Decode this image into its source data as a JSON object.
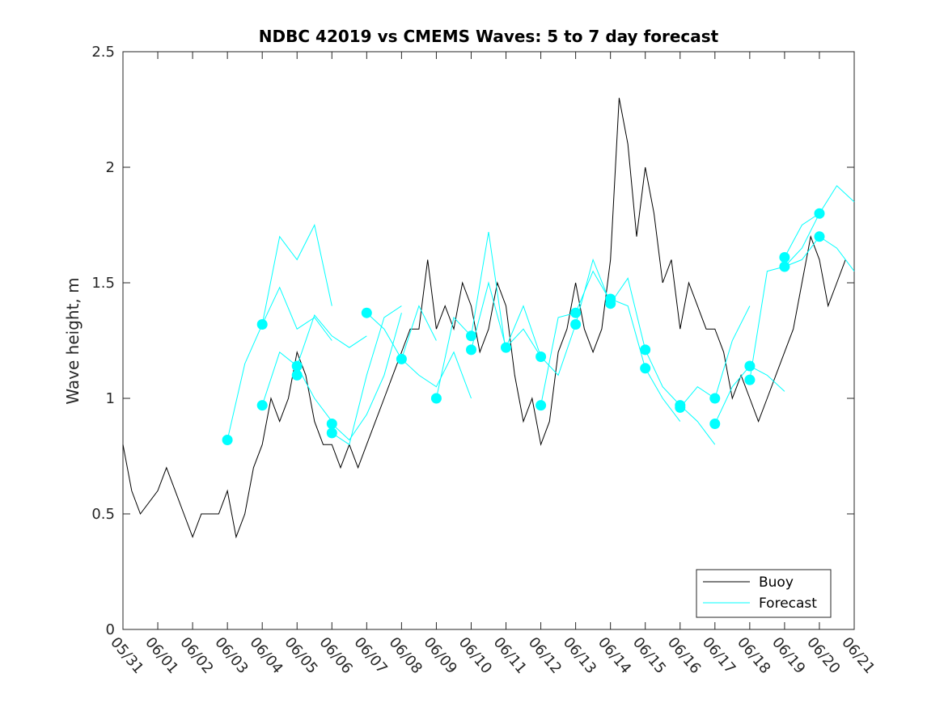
{
  "chart_data": {
    "type": "line",
    "title": "NDBC 42019 vs CMEMS Waves: 5 to 7 day forecast",
    "xlabel": "",
    "ylabel": "Wave height, m",
    "x_unit": "days",
    "x_tick_labels": [
      "05/31",
      "06/01",
      "06/02",
      "06/03",
      "06/04",
      "06/05",
      "06/06",
      "06/07",
      "06/08",
      "06/09",
      "06/10",
      "06/11",
      "06/12",
      "06/13",
      "06/14",
      "06/15",
      "06/16",
      "06/17",
      "06/18",
      "06/19",
      "06/20",
      "06/21"
    ],
    "xlim": [
      "05/31",
      "06/21"
    ],
    "ylim": [
      0,
      2.5
    ],
    "y_ticks": [
      0,
      0.5,
      1,
      1.5,
      2,
      2.5
    ],
    "grid": false,
    "legend_position": "bottom-right",
    "colors": {
      "buoy": "#000000",
      "forecast": "#00ffff"
    },
    "legend": [
      {
        "label": "Buoy",
        "color": "#000000"
      },
      {
        "label": "Forecast",
        "color": "#00ffff"
      }
    ],
    "buoy": {
      "name": "Buoy",
      "x": [
        "05/31",
        "05/31 06:00",
        "05/31 12:00",
        "06/01",
        "06/01 06:00",
        "06/01 12:00",
        "06/01 18:00",
        "06/02",
        "06/02 06:00",
        "06/02 12:00",
        "06/02 18:00",
        "06/03",
        "06/03 06:00",
        "06/03 12:00",
        "06/03 18:00",
        "06/04",
        "06/04 06:00",
        "06/04 12:00",
        "06/04 18:00",
        "06/05",
        "06/05 06:00",
        "06/05 12:00",
        "06/05 18:00",
        "06/06",
        "06/06 06:00",
        "06/06 12:00",
        "06/06 18:00",
        "06/07",
        "06/07 06:00",
        "06/07 12:00",
        "06/07 18:00",
        "06/08",
        "06/08 06:00",
        "06/08 12:00",
        "06/08 18:00",
        "06/09",
        "06/09 06:00",
        "06/09 12:00",
        "06/09 18:00",
        "06/10",
        "06/10 06:00",
        "06/10 12:00",
        "06/10 18:00",
        "06/11",
        "06/11 06:00",
        "06/11 12:00",
        "06/11 18:00",
        "06/12",
        "06/12 06:00",
        "06/12 12:00",
        "06/12 18:00",
        "06/13",
        "06/13 06:00",
        "06/13 12:00",
        "06/13 18:00",
        "06/14",
        "06/14 06:00",
        "06/14 12:00",
        "06/14 18:00",
        "06/15",
        "06/15 06:00",
        "06/15 12:00",
        "06/15 18:00",
        "06/16",
        "06/16 06:00",
        "06/16 12:00",
        "06/16 18:00",
        "06/17",
        "06/17 06:00",
        "06/17 12:00",
        "06/17 18:00",
        "06/18",
        "06/18 06:00",
        "06/18 12:00",
        "06/18 18:00",
        "06/19",
        "06/19 06:00",
        "06/19 12:00",
        "06/19 18:00",
        "06/20",
        "06/20 06:00",
        "06/20 12:00",
        "06/20 18:00"
      ],
      "y": [
        0.8,
        0.6,
        0.5,
        0.6,
        0.7,
        0.6,
        0.5,
        0.4,
        0.5,
        0.5,
        0.5,
        0.6,
        0.4,
        0.5,
        0.7,
        0.8,
        1.0,
        0.9,
        1.0,
        1.2,
        1.1,
        0.9,
        0.8,
        0.8,
        0.7,
        0.8,
        0.7,
        0.8,
        0.9,
        1.0,
        1.1,
        1.2,
        1.3,
        1.3,
        1.6,
        1.3,
        1.4,
        1.3,
        1.5,
        1.4,
        1.2,
        1.3,
        1.5,
        1.4,
        1.1,
        0.9,
        1.0,
        0.8,
        0.9,
        1.2,
        1.3,
        1.5,
        1.3,
        1.2,
        1.3,
        1.6,
        2.3,
        2.1,
        1.7,
        2.0,
        1.8,
        1.5,
        1.6,
        1.3,
        1.5,
        1.4,
        1.3,
        1.3,
        1.2,
        1.0,
        1.1,
        1.0,
        0.9,
        1.0,
        1.1,
        1.2,
        1.3,
        1.5,
        1.7,
        1.6,
        1.4,
        1.5,
        1.6
      ]
    },
    "forecast": {
      "name": "Forecast",
      "runs": [
        {
          "x": [
            "06/03",
            "06/03 12:00",
            "06/04",
            "06/04 12:00",
            "06/05",
            "06/05 12:00",
            "06/06"
          ],
          "y": [
            0.82,
            1.15,
            1.32,
            1.7,
            1.6,
            1.75,
            1.4
          ]
        },
        {
          "x": [
            "06/04",
            "06/04 12:00",
            "06/05",
            "06/05 12:00",
            "06/06"
          ],
          "y": [
            1.32,
            1.48,
            1.3,
            1.35,
            1.25
          ]
        },
        {
          "x": [
            "06/04",
            "06/04 12:00",
            "06/05",
            "06/05 12:00",
            "06/06"
          ],
          "y": [
            0.97,
            1.2,
            1.14,
            1.0,
            0.9
          ]
        },
        {
          "x": [
            "06/05",
            "06/05 12:00",
            "06/06",
            "06/06 12:00",
            "06/07"
          ],
          "y": [
            1.14,
            1.36,
            1.27,
            1.22,
            1.27
          ]
        },
        {
          "x": [
            "06/06",
            "06/06 12:00",
            "06/07",
            "06/07 12:00",
            "06/08"
          ],
          "y": [
            0.89,
            0.82,
            0.93,
            1.1,
            1.37
          ]
        },
        {
          "x": [
            "06/06",
            "06/06 12:00",
            "06/07",
            "06/07 12:00",
            "06/08"
          ],
          "y": [
            0.85,
            0.8,
            1.1,
            1.35,
            1.4
          ]
        },
        {
          "x": [
            "06/07",
            "06/07 12:00",
            "06/08",
            "06/08 12:00",
            "06/09"
          ],
          "y": [
            1.37,
            1.3,
            1.17,
            1.4,
            1.25
          ]
        },
        {
          "x": [
            "06/08",
            "06/08 12:00",
            "06/09",
            "06/09 12:00",
            "06/10"
          ],
          "y": [
            1.17,
            1.1,
            1.05,
            1.2,
            1.0
          ]
        },
        {
          "x": [
            "06/09",
            "06/09 12:00",
            "06/10",
            "06/10 12:00",
            "06/11"
          ],
          "y": [
            1.0,
            1.35,
            1.27,
            1.72,
            1.2
          ]
        },
        {
          "x": [
            "06/10",
            "06/10 12:00",
            "06/11",
            "06/11 12:00",
            "06/12"
          ],
          "y": [
            1.21,
            1.5,
            1.22,
            1.3,
            1.18
          ]
        },
        {
          "x": [
            "06/11",
            "06/11 12:00",
            "06/12",
            "06/12 12:00",
            "06/13"
          ],
          "y": [
            1.22,
            1.4,
            1.18,
            1.1,
            1.32
          ]
        },
        {
          "x": [
            "06/12",
            "06/12 12:00",
            "06/13",
            "06/13 12:00",
            "06/14"
          ],
          "y": [
            0.97,
            1.35,
            1.37,
            1.55,
            1.42
          ]
        },
        {
          "x": [
            "06/13",
            "06/13 12:00",
            "06/14",
            "06/14 12:00",
            "06/15"
          ],
          "y": [
            1.32,
            1.6,
            1.41,
            1.52,
            1.21
          ]
        },
        {
          "x": [
            "06/14",
            "06/14 12:00",
            "06/15",
            "06/15 12:00",
            "06/16"
          ],
          "y": [
            1.43,
            1.4,
            1.13,
            1.0,
            0.9
          ]
        },
        {
          "x": [
            "06/15",
            "06/15 12:00",
            "06/16",
            "06/16 12:00",
            "06/17"
          ],
          "y": [
            1.21,
            1.05,
            0.97,
            0.9,
            0.8
          ]
        },
        {
          "x": [
            "06/16",
            "06/16 12:00",
            "06/17",
            "06/17 12:00",
            "06/18"
          ],
          "y": [
            0.96,
            1.05,
            1.0,
            1.25,
            1.4
          ]
        },
        {
          "x": [
            "06/17",
            "06/17 12:00",
            "06/18",
            "06/18 12:00",
            "06/19"
          ],
          "y": [
            0.89,
            1.05,
            1.14,
            1.1,
            1.03
          ]
        },
        {
          "x": [
            "06/18",
            "06/18 12:00",
            "06/19",
            "06/19 12:00",
            "06/20"
          ],
          "y": [
            1.08,
            1.55,
            1.57,
            1.65,
            1.8
          ]
        },
        {
          "x": [
            "06/19",
            "06/19 12:00",
            "06/20",
            "06/20 12:00",
            "06/21"
          ],
          "y": [
            1.61,
            1.75,
            1.8,
            1.92,
            1.85
          ]
        },
        {
          "x": [
            "06/19",
            "06/19 12:00",
            "06/20",
            "06/20 12:00",
            "06/21"
          ],
          "y": [
            1.57,
            1.6,
            1.7,
            1.65,
            1.55
          ]
        }
      ],
      "markers": {
        "x": [
          "06/03",
          "06/04",
          "06/04",
          "06/05",
          "06/05",
          "06/06",
          "06/06",
          "06/07",
          "06/08",
          "06/09",
          "06/10",
          "06/10",
          "06/11",
          "06/12",
          "06/12",
          "06/13",
          "06/13",
          "06/14",
          "06/14",
          "06/15",
          "06/15",
          "06/16",
          "06/16",
          "06/17",
          "06/17",
          "06/18",
          "06/18",
          "06/19",
          "06/19",
          "06/20",
          "06/20"
        ],
        "y": [
          0.82,
          1.32,
          0.97,
          1.14,
          1.1,
          0.89,
          0.85,
          1.37,
          1.17,
          1.0,
          1.27,
          1.21,
          1.22,
          1.18,
          0.97,
          1.37,
          1.32,
          1.43,
          1.41,
          1.21,
          1.13,
          0.97,
          0.96,
          1.0,
          0.89,
          1.14,
          1.08,
          1.61,
          1.57,
          1.8,
          1.7
        ]
      }
    }
  }
}
